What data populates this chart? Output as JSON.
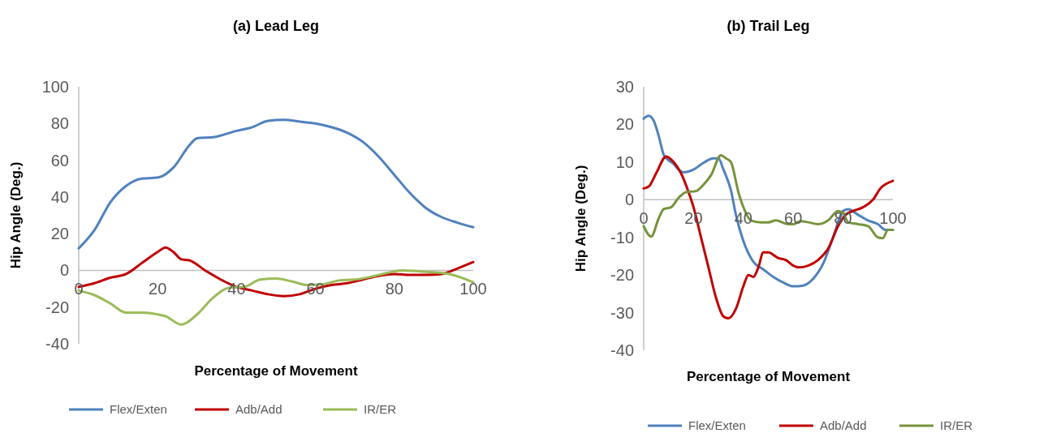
{
  "chart_data": [
    {
      "type": "line",
      "title": "(a) Lead Leg",
      "xlabel": "Percentage of Movement",
      "ylabel": "Hip Angle (Deg.)",
      "xlim": [
        0,
        100
      ],
      "xticks": [
        0,
        20,
        40,
        60,
        80,
        100
      ],
      "ylim": [
        -40,
        100
      ],
      "yticks": [
        -40,
        -20,
        0,
        20,
        40,
        60,
        80,
        100
      ],
      "grid": false,
      "legend": "bottom",
      "marker": "none",
      "line_style": "solid",
      "series": [
        {
          "name": "Flex/Exten",
          "color": "#4f81bd",
          "x": [
            0,
            4,
            8,
            12,
            16,
            20,
            24,
            28,
            30,
            34,
            40,
            44,
            48,
            52,
            56,
            60,
            64,
            68,
            72,
            76,
            80,
            84,
            88,
            92,
            96,
            100
          ],
          "values": [
            12,
            22,
            37,
            46,
            50,
            50.5,
            56,
            68,
            72,
            72.5,
            76,
            78,
            81.5,
            82,
            81,
            80,
            78,
            75,
            70,
            62,
            52,
            42,
            34,
            29,
            26,
            23.5
          ]
        },
        {
          "name": "Adb/Add",
          "color": "#c00000",
          "x": [
            0,
            4,
            8,
            12,
            16,
            20,
            22,
            24,
            26,
            28,
            32,
            36,
            40,
            44,
            48,
            52,
            56,
            60,
            64,
            68,
            72,
            76,
            80,
            84,
            88,
            92,
            96,
            100
          ],
          "values": [
            -9,
            -7,
            -4,
            -2,
            4,
            10,
            12.5,
            10,
            6,
            5.5,
            0,
            -5,
            -9,
            -11,
            -13,
            -14,
            -13,
            -10,
            -8,
            -7,
            -5,
            -3,
            -2,
            -2.5,
            -2.5,
            -2,
            1,
            4.5
          ]
        },
        {
          "name": "IR/ER",
          "color": "#9bbb59",
          "x": [
            0,
            4,
            8,
            12,
            16,
            20,
            22,
            26,
            30,
            34,
            38,
            42,
            46,
            50,
            54,
            58,
            62,
            66,
            70,
            74,
            78,
            82,
            86,
            90,
            94,
            100
          ],
          "values": [
            -11,
            -13.5,
            -18,
            -23,
            -23,
            -24,
            -25,
            -29.5,
            -24,
            -15,
            -9.5,
            -9,
            -5,
            -4.5,
            -6,
            -8,
            -7.5,
            -5.5,
            -5,
            -3.5,
            -1.5,
            0,
            -0.5,
            -1,
            -2,
            -6.5
          ]
        }
      ]
    },
    {
      "type": "line",
      "title": "(b) Trail Leg",
      "xlabel": "Percentage of Movement",
      "ylabel": "Hip Angle (Deg.)",
      "xlim": [
        0,
        100
      ],
      "xticks": [
        0,
        20,
        40,
        60,
        80,
        100
      ],
      "ylim": [
        -40,
        30
      ],
      "yticks": [
        -40,
        -30,
        -20,
        -10,
        0,
        10,
        20,
        30
      ],
      "grid": false,
      "legend": "bottom",
      "marker": "none",
      "line_style": "solid",
      "series": [
        {
          "name": "Flex/Exten",
          "color": "#4f81bd",
          "x": [
            0,
            2,
            4,
            6,
            8,
            10,
            12,
            14,
            16,
            18,
            20,
            24,
            28,
            30,
            32,
            35,
            37,
            40,
            44,
            48,
            52,
            56,
            60,
            64,
            68,
            72,
            76,
            80,
            82,
            86,
            90,
            94,
            97,
            100
          ],
          "values": [
            21.5,
            22.3,
            21,
            17,
            12,
            10.5,
            9.5,
            8,
            7.3,
            7.5,
            8,
            9.8,
            11,
            11,
            8,
            2.5,
            -4,
            -11,
            -16.5,
            -18.5,
            -20.5,
            -22,
            -23,
            -22.8,
            -21,
            -17,
            -10,
            -3,
            -2.5,
            -4,
            -5.5,
            -6.5,
            -8,
            -8
          ]
        },
        {
          "name": "Adb/Add",
          "color": "#c00000",
          "x": [
            0,
            2,
            5,
            9,
            12,
            15,
            18,
            20,
            23,
            26,
            29,
            32,
            34,
            37,
            40,
            42,
            44,
            46,
            48,
            50,
            54,
            57,
            60,
            62,
            66,
            70,
            74,
            78,
            81,
            84,
            88,
            92,
            95,
            100
          ],
          "values": [
            3,
            3.5,
            7,
            11.5,
            10,
            7,
            2,
            -2,
            -10,
            -18,
            -26,
            -31,
            -31.5,
            -29,
            -23,
            -20,
            -20.5,
            -18,
            -14,
            -14,
            -15.5,
            -16,
            -17.5,
            -18,
            -17.5,
            -16,
            -13,
            -7,
            -4,
            -3,
            -2,
            0,
            3,
            5
          ]
        },
        {
          "name": "IR/ER",
          "color": "#77933c",
          "x": [
            0,
            3,
            6,
            8,
            11,
            14,
            17,
            21,
            24,
            27,
            31,
            33,
            35,
            38,
            40,
            43,
            47,
            50,
            53,
            58,
            60,
            63,
            66,
            70,
            74,
            78,
            80,
            82,
            86,
            90,
            94,
            96,
            98,
            100
          ],
          "values": [
            -7,
            -9.8,
            -5,
            -2.5,
            -2,
            0.5,
            2,
            2.3,
            4,
            6.5,
            11.8,
            11,
            10,
            2,
            -2,
            -5.5,
            -6,
            -6,
            -5.5,
            -6.5,
            -6.5,
            -5.7,
            -6,
            -6.5,
            -5.5,
            -3,
            -3.5,
            -6,
            -6.5,
            -7,
            -10,
            -10.2,
            -8,
            -8
          ]
        }
      ]
    }
  ]
}
